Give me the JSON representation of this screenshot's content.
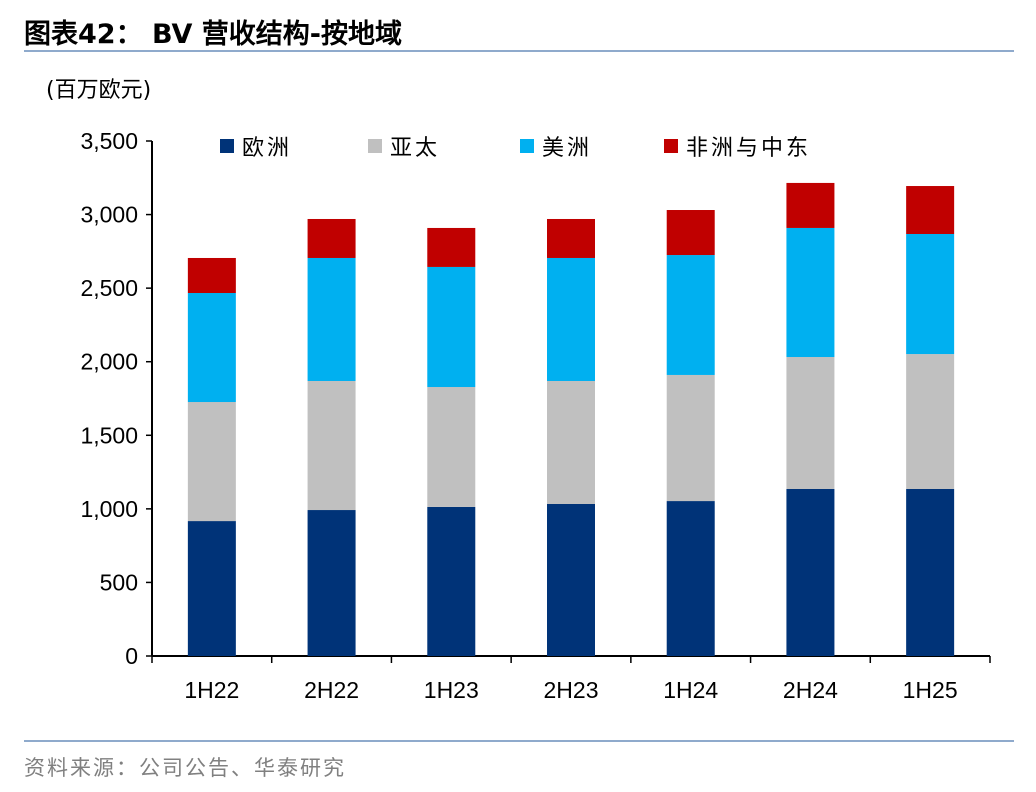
{
  "title": "图表42： BV 营收结构-按地域",
  "unit_label": "(百万欧元)",
  "source": "资料来源：公司公告、华泰研究",
  "chart_data": {
    "type": "bar",
    "stacked": true,
    "categories": [
      "1H22",
      "2H22",
      "1H23",
      "2H23",
      "1H24",
      "2H24",
      "1H25"
    ],
    "series": [
      {
        "name": "欧洲",
        "color": "#003378",
        "values": [
          917,
          992,
          1013,
          1033,
          1053,
          1135,
          1135
        ]
      },
      {
        "name": "亚太",
        "color": "#c0c0c0",
        "values": [
          809,
          877,
          815,
          836,
          857,
          897,
          917
        ]
      },
      {
        "name": "美洲",
        "color": "#00b0f0",
        "values": [
          741,
          836,
          816,
          836,
          815,
          877,
          816
        ]
      },
      {
        "name": "非洲与中东",
        "color": "#c00000",
        "values": [
          238,
          265,
          265,
          265,
          306,
          306,
          326
        ]
      }
    ],
    "ylim": [
      0,
      3500
    ],
    "yticks": [
      0,
      500,
      1000,
      1500,
      2000,
      2500,
      3000,
      3500
    ],
    "ytick_labels": [
      "0",
      "500",
      "1,000",
      "1,500",
      "2,000",
      "2,500",
      "3,000",
      "3,500"
    ],
    "grid": false,
    "legend_placement": "top"
  }
}
